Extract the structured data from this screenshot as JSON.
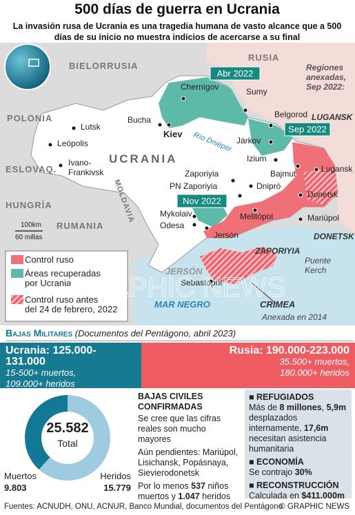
{
  "header": {
    "title": "500 días de guerra en Ucrania",
    "subtitle": [
      "La invasión rusa de Ucrania es una tragedia humana de vasto alcance que a 500",
      "días de su inicio no muestra indicios de acercarse a su final"
    ]
  },
  "map": {
    "countries": [
      "BIELORRUSIA",
      "RUSIA",
      "POLONIA",
      "ESLOVAQ.",
      "HUNGRÍA",
      "RUMANIA",
      "MOLDAVIA",
      "UCRANIA"
    ],
    "cities": [
      "Chernígov",
      "Sumy",
      "Bucha",
      "Kiev",
      "Járkov",
      "Belgorod",
      "Lutsk",
      "Leópolis",
      [
        "Ivano-",
        "Frankivsk"
      ],
      "Izium",
      "Bajmut",
      "Lugansk",
      "Zaporiyia",
      "PN Zaporiyia",
      "Dnipró",
      "Donetsk",
      "Mykolaiv",
      "Odesa",
      "Melitópol",
      "Mariúpol",
      "Jersón",
      "Sebastopol"
    ],
    "regions": [
      "LUGANSK",
      "DONETSK",
      "ZAPORIYIA",
      "JERSÓN",
      "CRIMEA"
    ],
    "annexed_note": [
      "Regiones",
      "anexadas,",
      "Sep 2022:"
    ],
    "river": "Río Dniéper",
    "sea": "MAR NEGRO",
    "bridge": [
      "Puente",
      "Kerch"
    ],
    "crimea_note": "Anexada en 2014",
    "dates": [
      "Abr 2022",
      "Sep 2022",
      "Nov 2022"
    ],
    "scale": [
      "100km",
      "60 millas"
    ],
    "legend": [
      [
        "Control ruso"
      ],
      [
        "Áreas recuperadas",
        "por Ucrania"
      ],
      [
        "Control ruso antes",
        "del 24 de febrero, 2022"
      ]
    ],
    "watermark": "GRAPHIC NEWS"
  },
  "military": {
    "title": "Bajas Militares",
    "source": "(Documentos del Pentágono, abril 2023)",
    "ukraine": {
      "label": "Ucrania:",
      "range": "125.000-131.000",
      "lines": [
        "15-500+ muertos,",
        "109.000+ heridos"
      ]
    },
    "russia": {
      "label": "Rusia:",
      "range": "190.000-223.000",
      "lines": [
        "35.500+ muertos,",
        "180.000+ heridos"
      ]
    }
  },
  "chart_data": {
    "type": "donut",
    "categories": [
      "Muertos",
      "Heridos"
    ],
    "values": [
      9803,
      15779
    ],
    "value_labels": [
      "9.803",
      "15.779"
    ],
    "colors": [
      "#137894",
      "#9fcbe0"
    ],
    "total": 25582,
    "total_label": "25.582",
    "center_label": "Total"
  },
  "civilians": {
    "title": [
      "BAJAS CIVILES",
      "CONFIRMADAS"
    ],
    "note": "Se cree que las cifras reales son mucho mayores",
    "pending": "Aún pendientes: Mariúpol, Lisichansk, Popásnaya, Sievierodonetsk",
    "children": [
      "Por lo menos ",
      "537",
      " niños muertos y ",
      "1.047",
      " heridos"
    ]
  },
  "panel": {
    "refugees": {
      "title": "REFUGIADOS",
      "text": [
        "Más de ",
        "8 millones",
        ", ",
        "5,9m",
        " desplazados internamente, ",
        "17,6m",
        " necesitan asistencia humanitaria"
      ]
    },
    "economy": {
      "title": "ECONOMÍA",
      "text": [
        "Se contrajo ",
        "30%"
      ]
    },
    "reconstruction": {
      "title": "RECONSTRUCCIÓN",
      "text": [
        "Calculada en ",
        "$411.000m"
      ]
    }
  },
  "footer": {
    "sources": "Fuentes: ACNUDH, ONU, ACNUR, Banco Mundial, documentos del Pentágono",
    "credit": "© GRAPHIC NEWS"
  }
}
